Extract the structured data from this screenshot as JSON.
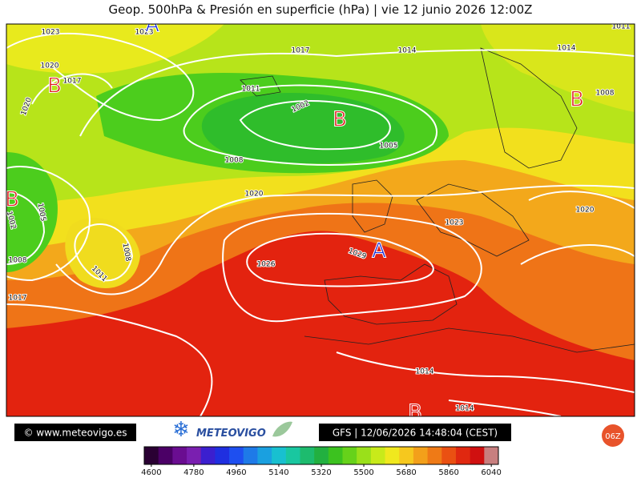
{
  "header": {
    "title": "Geop. 500hPa & Presión en superficie (hPa) | vie 12 junio 2026 12:00Z"
  },
  "map": {
    "isobar_labels": [
      "1023",
      "1023",
      "1020",
      "1017",
      "1020",
      "1017",
      "1014",
      "1014",
      "1011",
      "1011",
      "1002",
      "1008",
      "1005",
      "1008",
      "1020",
      "1005",
      "1002",
      "1008",
      "1011",
      "1008",
      "1017",
      "1026",
      "1029",
      "1023",
      "1020",
      "1014",
      "1014"
    ],
    "centers": [
      "A",
      "B",
      "B",
      "B",
      "B",
      "A",
      "B"
    ]
  },
  "footer": {
    "website": "© www.meteovigo.es",
    "brand": "METEOVIGO",
    "run": "GFS | 12/06/2026 14:48:04 (CEST)",
    "badge": "06Z"
  },
  "colorbar": {
    "lim": [
      4600,
      6100
    ],
    "ticks": [
      4600,
      4780,
      4960,
      5140,
      5320,
      5500,
      5680,
      5860,
      6040
    ],
    "colors": [
      "#2a0033",
      "#4b0066",
      "#6a0d91",
      "#7a1fb0",
      "#3b1fcf",
      "#1f2fe0",
      "#1e4ff0",
      "#1e7ae8",
      "#1aa0e0",
      "#18c0d0",
      "#19c7a0",
      "#1dbb6e",
      "#22b040",
      "#3cc21f",
      "#66d21a",
      "#9ae01a",
      "#c8ea1a",
      "#f0e81e",
      "#f6c81e",
      "#f3a01a",
      "#ef7a16",
      "#ea5012",
      "#e02810",
      "#d01010",
      "#c87f7f"
    ]
  }
}
